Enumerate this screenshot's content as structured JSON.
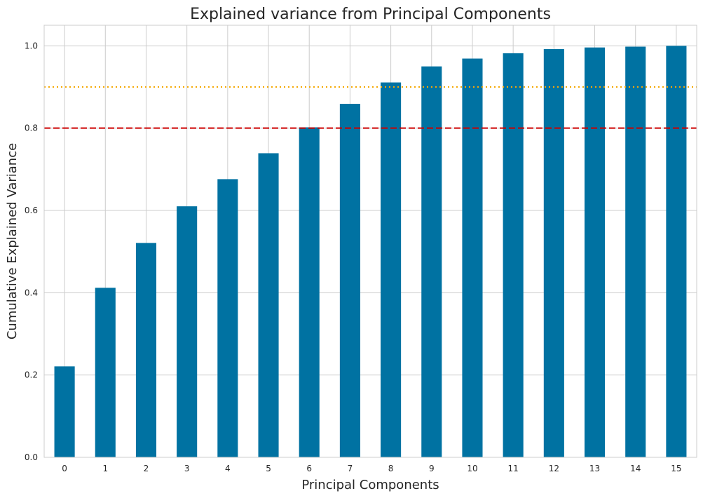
{
  "chart_data": {
    "type": "bar",
    "title": "Explained variance from Principal Components",
    "xlabel": "Principal Components",
    "ylabel": "Cumulative Explained Variance",
    "categories": [
      "0",
      "1",
      "2",
      "3",
      "4",
      "5",
      "6",
      "7",
      "8",
      "9",
      "10",
      "11",
      "12",
      "13",
      "14",
      "15"
    ],
    "values": [
      0.221,
      0.412,
      0.521,
      0.61,
      0.676,
      0.739,
      0.802,
      0.859,
      0.911,
      0.95,
      0.969,
      0.982,
      0.992,
      0.996,
      0.998,
      1.0
    ],
    "ylim": [
      0,
      1.05
    ],
    "yticks": [
      0.0,
      0.2,
      0.4,
      0.6,
      0.8,
      1.0
    ],
    "ytick_labels": [
      "0.0",
      "0.2",
      "0.4",
      "0.6",
      "0.8",
      "1.0"
    ],
    "grid": true,
    "reference_lines": [
      {
        "y": 0.8,
        "style": "dashed",
        "color": "#cc0000"
      },
      {
        "y": 0.9,
        "style": "dotted",
        "color": "#f5a800"
      }
    ],
    "bar_color": "#0072a2"
  }
}
